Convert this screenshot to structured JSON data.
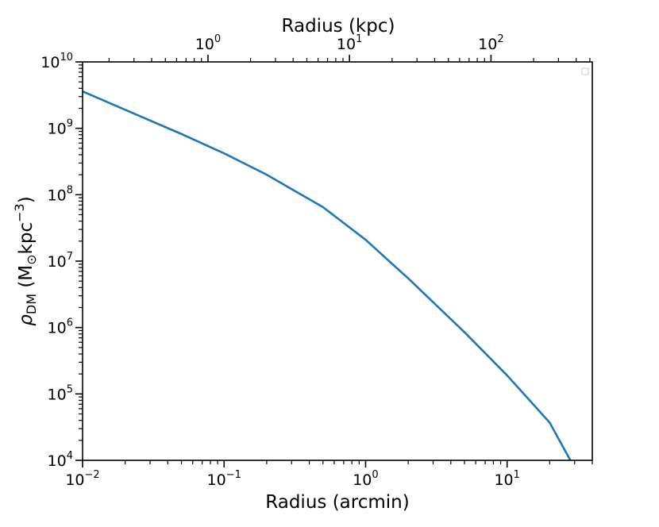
{
  "chart_data": {
    "type": "line",
    "xlabel": "Radius (arcmin)",
    "x2label": "Radius (kpc)",
    "ylabel": {
      "base": "ρ",
      "sub": "DM",
      "rest": " (M",
      "sun_sub": "⊙",
      "unit": "kpc",
      "sup": "−3",
      "close": ")"
    },
    "xscale": "log",
    "yscale": "log",
    "xlim": [
      0.01,
      40
    ],
    "ylim": [
      10000,
      10000000000
    ],
    "x2lim": [
      0.13,
      520
    ],
    "x_ticks": [
      {
        "base": "10",
        "exp": "−2",
        "value": 0.01
      },
      {
        "base": "10",
        "exp": "−1",
        "value": 0.1
      },
      {
        "base": "10",
        "exp": "0",
        "value": 1
      },
      {
        "base": "10",
        "exp": "1",
        "value": 10
      }
    ],
    "x2_ticks": [
      {
        "base": "10",
        "exp": "0",
        "value": 1
      },
      {
        "base": "10",
        "exp": "1",
        "value": 10
      },
      {
        "base": "10",
        "exp": "2",
        "value": 100
      }
    ],
    "y_ticks": [
      {
        "base": "10",
        "exp": "4",
        "value": 10000
      },
      {
        "base": "10",
        "exp": "5",
        "value": 100000
      },
      {
        "base": "10",
        "exp": "6",
        "value": 1000000
      },
      {
        "base": "10",
        "exp": "7",
        "value": 10000000
      },
      {
        "base": "10",
        "exp": "8",
        "value": 100000000
      },
      {
        "base": "10",
        "exp": "9",
        "value": 1000000000
      },
      {
        "base": "10",
        "exp": "10",
        "value": 10000000000
      }
    ],
    "grid": false,
    "legend": "top-right, empty",
    "series": [
      {
        "color": "#1f77b4",
        "x": [
          0.01,
          0.02,
          0.05,
          0.1,
          0.2,
          0.5,
          1.0,
          2.0,
          5.0,
          10.0,
          20.0,
          28.0
        ],
        "y": [
          3600000000,
          1900000000,
          820000000,
          420000000,
          200000000,
          65000000,
          21000000,
          5500000,
          850000,
          190000,
          37000,
          10000
        ]
      }
    ]
  }
}
